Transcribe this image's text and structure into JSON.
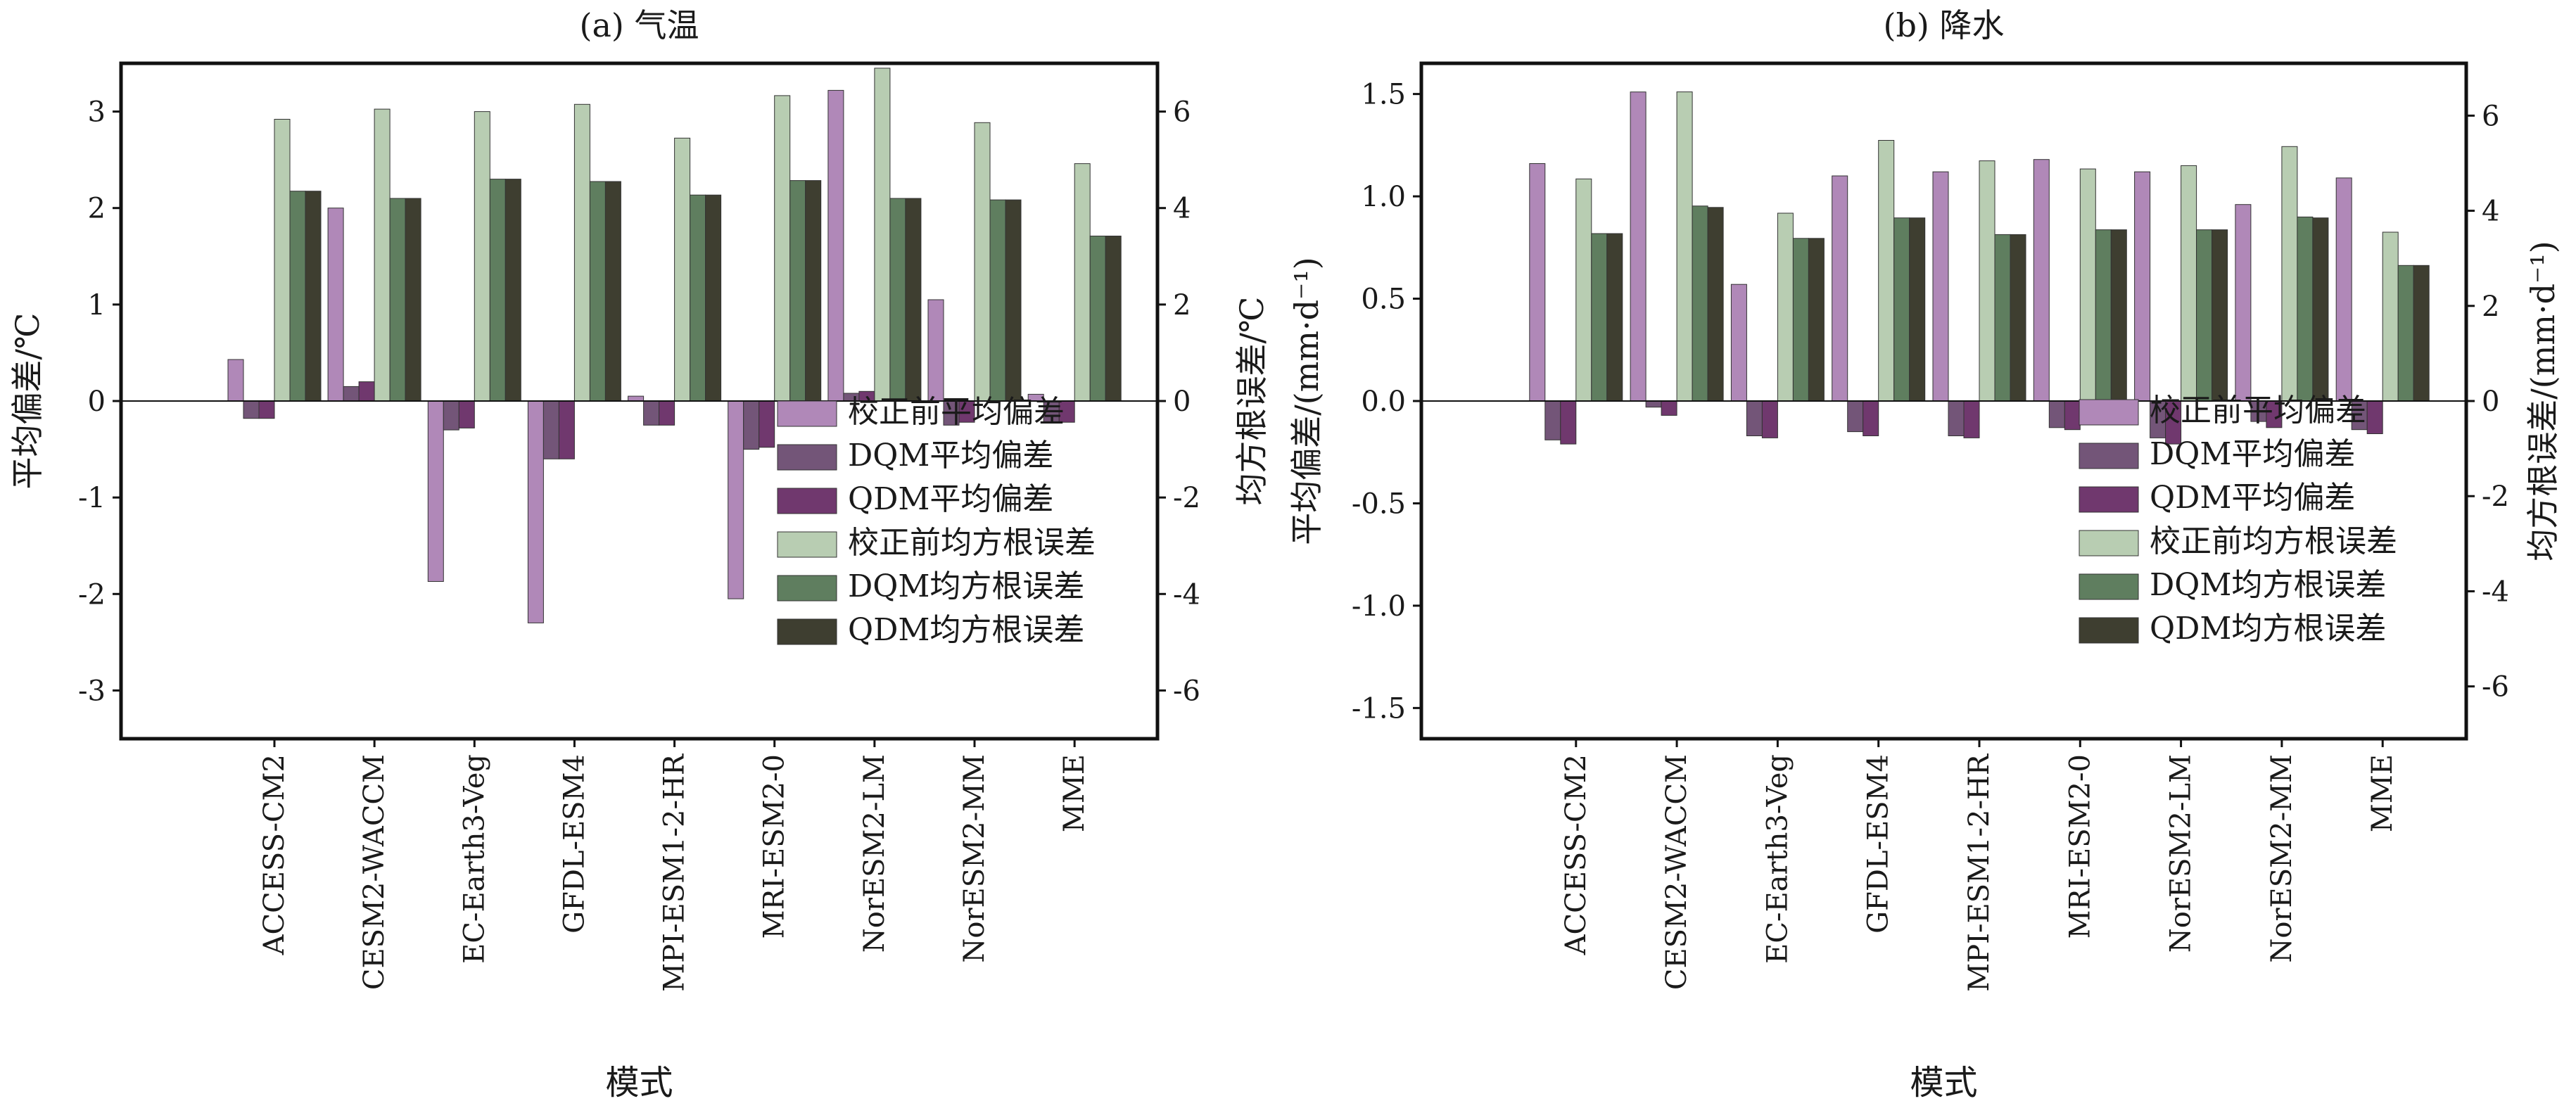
{
  "legend_labels": [
    "校正前平均偏差",
    "DQM平均偏差",
    "QDM平均偏差",
    "校正前均方根误差",
    "DQM均方根误差",
    "QDM均方根误差"
  ],
  "colors": {
    "raw_bias": "#b088b8",
    "dqm_bias": "#735578",
    "qdm_bias": "#70386e",
    "raw_rmse": "#b8cdb2",
    "dqm_rmse": "#5f7e5f",
    "qdm_rmse": "#3e3e30"
  },
  "chart_data": [
    {
      "type": "bar",
      "title": "(a) 气温",
      "xlabel": "模式",
      "ylabel_left": "平均偏差/℃",
      "ylabel_right": "均方根误差/℃",
      "categories": [
        "ACCESS-CM2",
        "CESM2-WACCM",
        "EC-Earth3-Veg",
        "GFDL-ESM4",
        "MPI-ESM1-2-HR",
        "MRI-ESM2-0",
        "NorESM2-LM",
        "NorESM2-MM",
        "MME"
      ],
      "ylim_left": [
        -3.5,
        3.5
      ],
      "yticks_left": [
        3,
        2,
        1,
        0,
        -1,
        -2,
        -3
      ],
      "ylim_right": [
        -7,
        7
      ],
      "yticks_right": [
        6,
        4,
        2,
        0,
        -2,
        -4,
        -6
      ],
      "legend_position": "lower-right",
      "series": [
        {
          "name": "校正前平均偏差",
          "axis": "left",
          "values": [
            0.43,
            2.0,
            -1.87,
            -2.3,
            0.05,
            -2.05,
            3.22,
            1.05,
            0.07
          ]
        },
        {
          "name": "DQM平均偏差",
          "axis": "left",
          "values": [
            -0.18,
            0.15,
            -0.3,
            -0.6,
            -0.25,
            -0.5,
            0.08,
            -0.25,
            -0.22
          ]
        },
        {
          "name": "QDM平均偏差",
          "axis": "left",
          "values": [
            -0.18,
            0.2,
            -0.28,
            -0.6,
            -0.25,
            -0.48,
            0.1,
            -0.22,
            -0.22
          ]
        },
        {
          "name": "校正前均方根误差",
          "axis": "right",
          "values": [
            5.84,
            6.05,
            6.0,
            6.15,
            5.45,
            6.33,
            6.9,
            5.77,
            4.92
          ]
        },
        {
          "name": "DQM均方根误差",
          "axis": "right",
          "values": [
            4.35,
            4.2,
            4.6,
            4.55,
            4.27,
            4.57,
            4.2,
            4.17,
            3.42
          ]
        },
        {
          "name": "QDM均方根误差",
          "axis": "right",
          "values": [
            4.35,
            4.2,
            4.6,
            4.55,
            4.27,
            4.57,
            4.2,
            4.17,
            3.42
          ]
        }
      ]
    },
    {
      "type": "bar",
      "title": "(b) 降水",
      "xlabel": "模式",
      "ylabel_left": "平均偏差/(mm·d⁻¹)",
      "ylabel_right": "均方根误差/(mm·d⁻¹)",
      "categories": [
        "ACCESS-CM2",
        "CESM2-WACCM",
        "EC-Earth3-Veg",
        "GFDL-ESM4",
        "MPI-ESM1-2-HR",
        "MRI-ESM2-0",
        "NorESM2-LM",
        "NorESM2-MM",
        "MME"
      ],
      "ylim_left": [
        -1.65,
        1.65
      ],
      "yticks_left": [
        1.5,
        1.0,
        0.5,
        0,
        -0.5,
        -1.0,
        -1.5
      ],
      "ylim_right": [
        -7.1,
        7.1
      ],
      "yticks_right": [
        6,
        4,
        2,
        0,
        -2,
        -4,
        -6
      ],
      "legend_position": "lower-right",
      "series": [
        {
          "name": "校正前平均偏差",
          "axis": "left",
          "values": [
            1.16,
            1.51,
            0.57,
            1.1,
            1.12,
            1.18,
            1.12,
            0.96,
            1.09
          ]
        },
        {
          "name": "DQM平均偏差",
          "axis": "left",
          "values": [
            -0.19,
            -0.03,
            -0.17,
            -0.15,
            -0.17,
            -0.13,
            -0.18,
            -0.1,
            -0.14
          ]
        },
        {
          "name": "QDM平均偏差",
          "axis": "left",
          "values": [
            -0.21,
            -0.07,
            -0.18,
            -0.17,
            -0.18,
            -0.14,
            -0.21,
            -0.13,
            -0.16
          ]
        },
        {
          "name": "校正前均方根误差",
          "axis": "right",
          "values": [
            4.67,
            6.5,
            3.95,
            5.48,
            5.05,
            4.88,
            4.95,
            5.35,
            3.55
          ]
        },
        {
          "name": "DQM均方根误差",
          "axis": "right",
          "values": [
            3.52,
            4.1,
            3.42,
            3.85,
            3.5,
            3.6,
            3.6,
            3.87,
            2.85
          ]
        },
        {
          "name": "QDM均方根误差",
          "axis": "right",
          "values": [
            3.52,
            4.07,
            3.42,
            3.85,
            3.5,
            3.6,
            3.6,
            3.85,
            2.85
          ]
        }
      ]
    }
  ]
}
